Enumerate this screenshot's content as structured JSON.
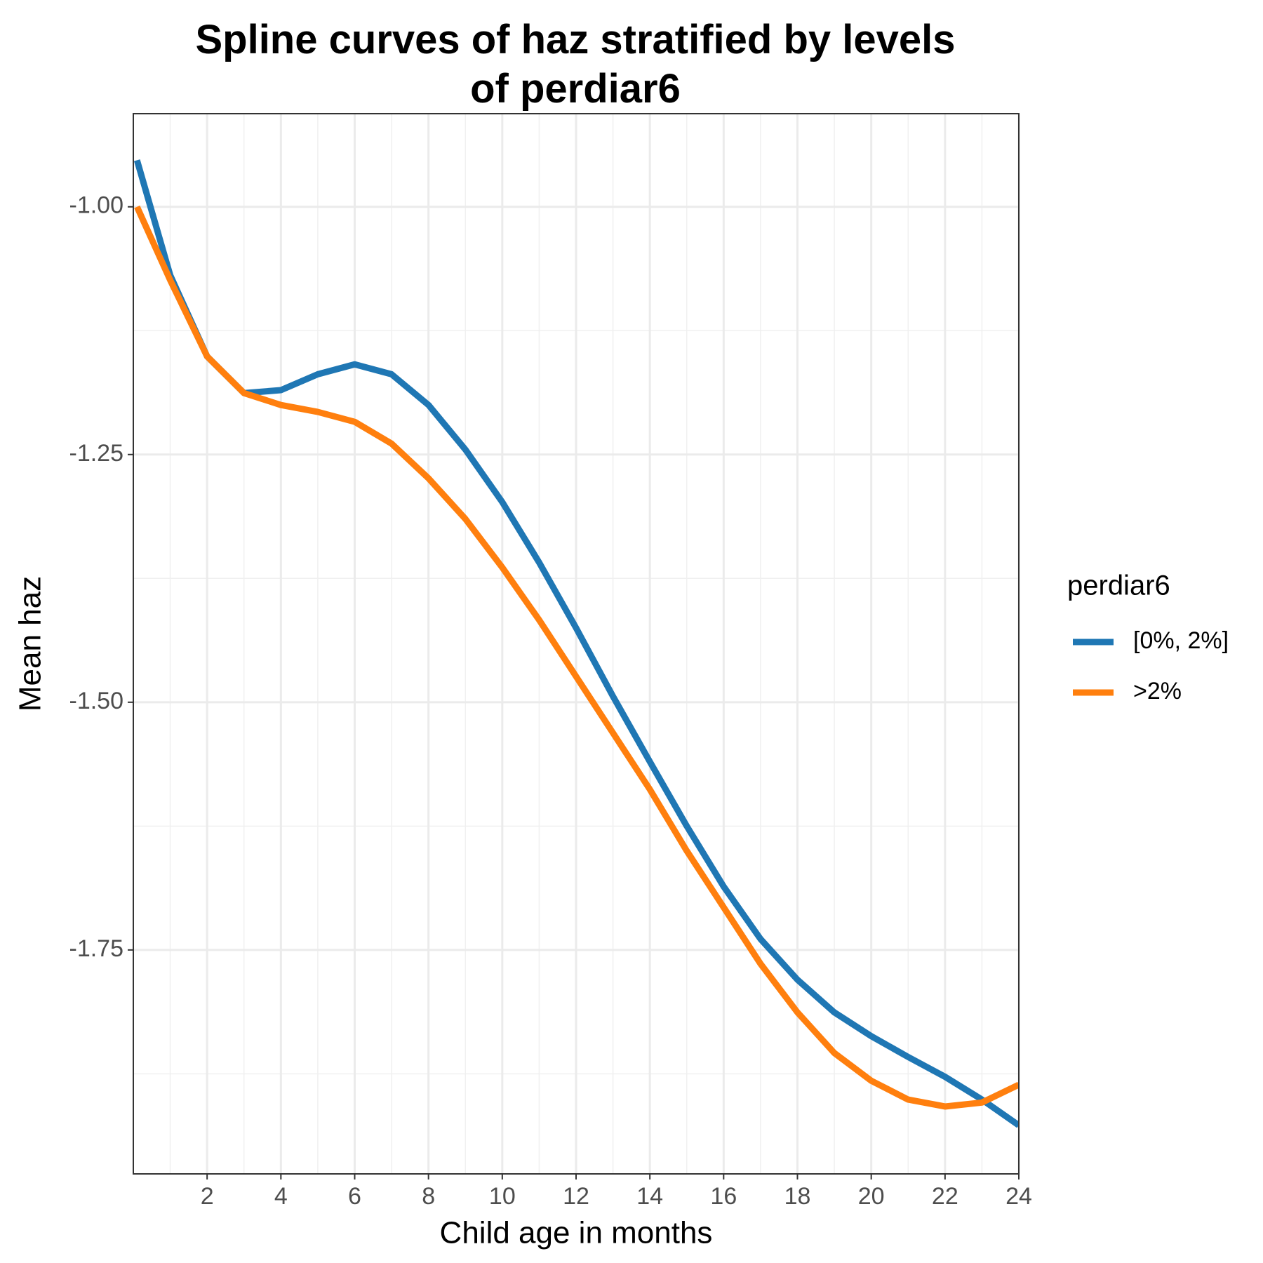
{
  "chart_data": {
    "type": "line",
    "title": "Spline curves of haz stratified by levels of perdiar6",
    "x_label": "Child age in months",
    "y_label": "Mean haz",
    "legend_title": "perdiar6",
    "legend_position": "right",
    "grid": true,
    "x": [
      0.1,
      1,
      2,
      3,
      4,
      5,
      6,
      7,
      8,
      9,
      10,
      11,
      12,
      13,
      14,
      15,
      16,
      17,
      18,
      19,
      20,
      21,
      22,
      23,
      24
    ],
    "series": [
      {
        "name": "[0%, 2%]",
        "color": "#1f77b4",
        "values": [
          -0.953,
          -1.069,
          -1.151,
          -1.188,
          -1.185,
          -1.169,
          -1.159,
          -1.169,
          -1.2,
          -1.245,
          -1.298,
          -1.359,
          -1.425,
          -1.494,
          -1.56,
          -1.625,
          -1.686,
          -1.739,
          -1.78,
          -1.813,
          -1.837,
          -1.858,
          -1.878,
          -1.901,
          -1.927
        ]
      },
      {
        "name": ">2%",
        "color": "#ff7f0e",
        "values": [
          -1.0,
          -1.074,
          -1.151,
          -1.188,
          -1.2,
          -1.207,
          -1.217,
          -1.239,
          -1.274,
          -1.315,
          -1.364,
          -1.417,
          -1.474,
          -1.531,
          -1.588,
          -1.65,
          -1.707,
          -1.764,
          -1.813,
          -1.854,
          -1.882,
          -1.901,
          -1.908,
          -1.904,
          -1.886
        ]
      }
    ],
    "xlim": [
      0,
      24
    ],
    "xticks": [
      2,
      4,
      6,
      8,
      10,
      12,
      14,
      16,
      18,
      20,
      22,
      24
    ],
    "ylim": [
      -1.976,
      -0.906
    ],
    "yticks": [
      {
        "value": -1.75,
        "label": "-1.75"
      },
      {
        "value": -1.5,
        "label": "-1.50"
      },
      {
        "value": -1.25,
        "label": "-1.25"
      },
      {
        "value": -1.0,
        "label": "-1.00"
      }
    ]
  }
}
